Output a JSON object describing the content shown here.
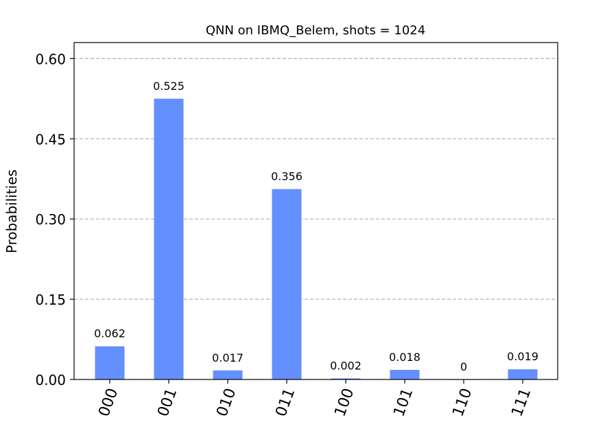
{
  "chart_data": {
    "type": "bar",
    "title": "QNN on IBMQ_Belem, shots = 1024",
    "xlabel": "",
    "ylabel": "Probabilities",
    "categories": [
      "000",
      "001",
      "010",
      "011",
      "100",
      "101",
      "110",
      "111"
    ],
    "values": [
      0.062,
      0.525,
      0.017,
      0.356,
      0.002,
      0.018,
      0,
      0.019
    ],
    "value_labels": [
      "0.062",
      "0.525",
      "0.017",
      "0.356",
      "0.002",
      "0.018",
      "0",
      "0.019"
    ],
    "ylim": [
      0,
      0.63
    ],
    "yticks": [
      0.0,
      0.15,
      0.3,
      0.45,
      0.6
    ],
    "ytick_labels": [
      "0.00",
      "0.15",
      "0.30",
      "0.45",
      "0.60"
    ],
    "grid": "horizontal dashed",
    "bar_color": "#648fff",
    "grid_color": "#b0b0b0",
    "xtick_rotation": "70deg"
  }
}
